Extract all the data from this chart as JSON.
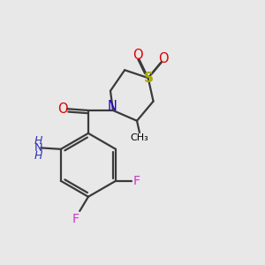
{
  "bg": "#e8e8e8",
  "bond_color": "black",
  "lw": 1.6,
  "figsize": [
    3.0,
    3.0
  ],
  "dpi": 100,
  "xlim": [
    0,
    10
  ],
  "ylim": [
    0,
    10
  ],
  "colors": {
    "N": "#2200cc",
    "O": "#dd0000",
    "F": "#cc33cc",
    "S": "#aaaa00",
    "NH": "#3333bb",
    "bond": "#3a3a3a"
  }
}
